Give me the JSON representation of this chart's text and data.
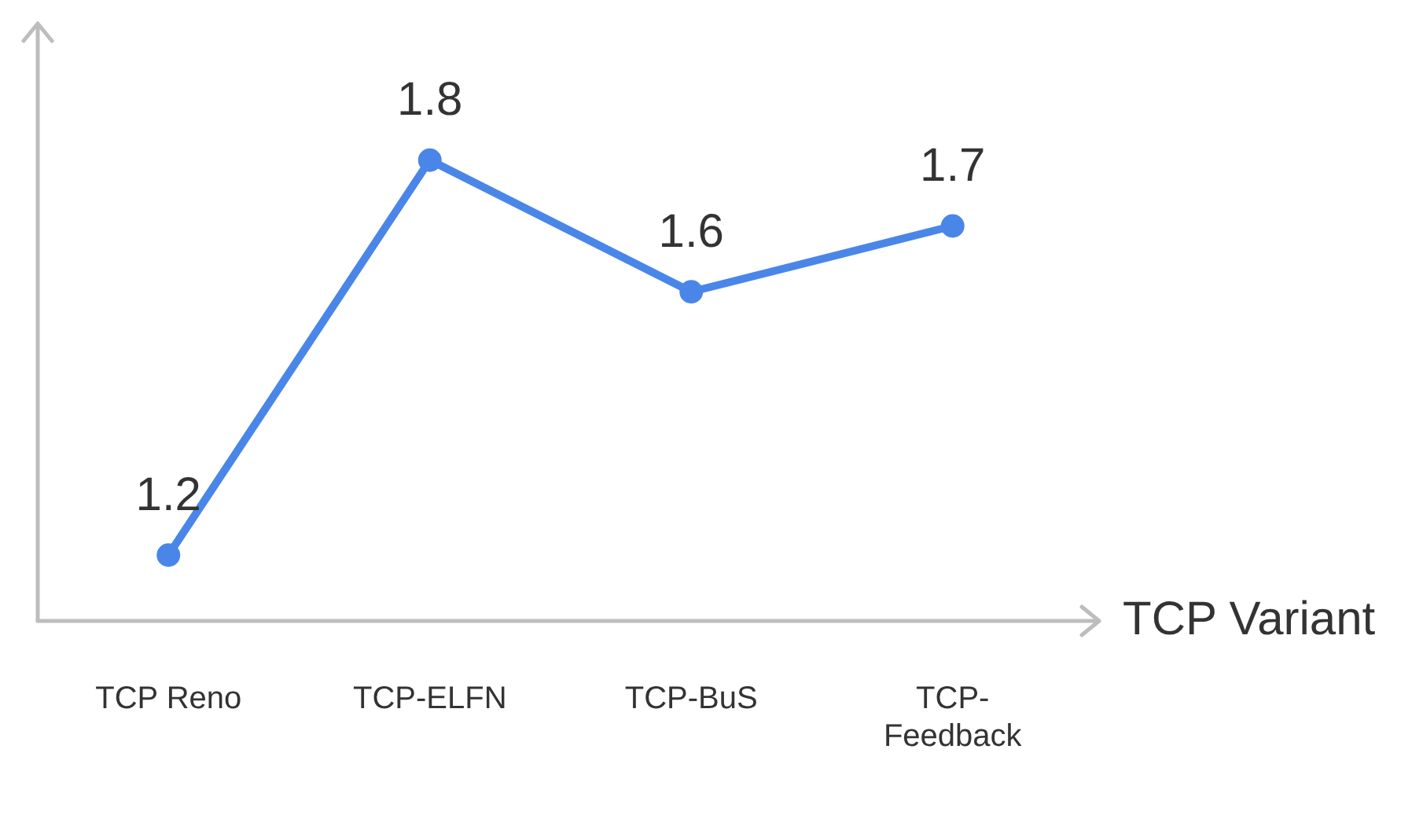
{
  "chart_data": {
    "type": "line",
    "xlabel": "TCP Variant",
    "categories": [
      "TCP Reno",
      "TCP-ELFN",
      "TCP-BuS",
      "TCP-Feedback"
    ],
    "series": [
      {
        "color": "#4a86e8",
        "values": [
          1.2,
          1.8,
          1.6,
          1.7
        ]
      }
    ],
    "data_labels": true,
    "marker": "circle",
    "line_style": "solid"
  }
}
